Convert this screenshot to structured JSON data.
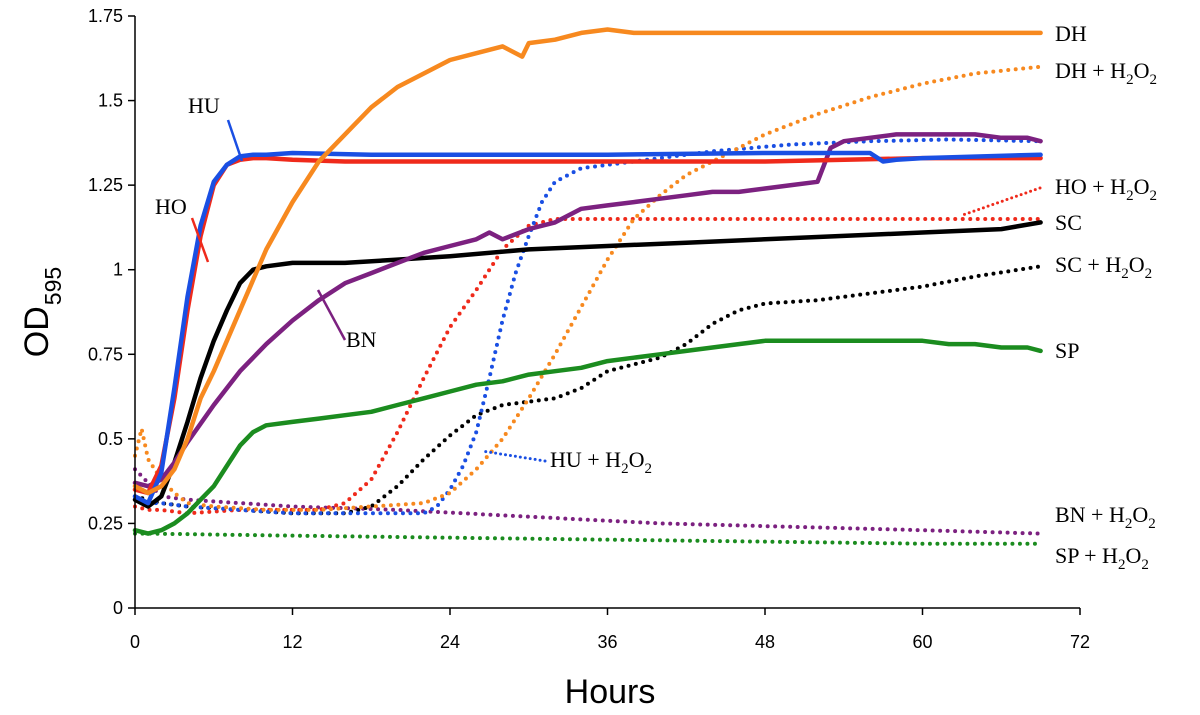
{
  "chart_data": {
    "type": "line",
    "title": "",
    "xlabel": "Hours",
    "ylabel": "OD",
    "ylabel_subscript": "595",
    "xlim": [
      0,
      72
    ],
    "ylim": [
      0,
      1.75
    ],
    "xticks": [
      "0",
      "12",
      "24",
      "36",
      "48",
      "60",
      "72"
    ],
    "yticks": [
      "0",
      "0.25",
      "0.5",
      "0.75",
      "1",
      "1.25",
      "1.5",
      "1.75"
    ],
    "grid": false,
    "legend": "none",
    "series": [
      {
        "name": "DH",
        "color": "#f7891f",
        "style": "solid",
        "x": [
          0,
          1,
          2,
          3,
          4,
          5,
          6,
          8,
          10,
          12,
          14,
          16,
          18,
          20,
          22,
          24,
          26,
          28,
          29.5,
          30,
          32,
          34,
          36,
          38,
          42,
          48,
          54,
          60,
          66,
          69
        ],
        "y": [
          0.36,
          0.34,
          0.36,
          0.41,
          0.5,
          0.62,
          0.7,
          0.88,
          1.06,
          1.2,
          1.32,
          1.4,
          1.48,
          1.54,
          1.58,
          1.62,
          1.64,
          1.66,
          1.63,
          1.67,
          1.68,
          1.7,
          1.71,
          1.7,
          1.7,
          1.7,
          1.7,
          1.7,
          1.7,
          1.7
        ]
      },
      {
        "name": "DH + H2O2",
        "label_parts": [
          [
            "DH + H"
          ],
          [
            "2",
            "sub"
          ],
          [
            "O"
          ],
          [
            "2",
            "sub"
          ]
        ],
        "color": "#f7891f",
        "style": "dotted",
        "x": [
          0,
          0.5,
          1,
          2,
          3,
          4,
          6,
          10,
          14,
          18,
          22,
          24,
          26,
          28,
          30,
          32,
          34,
          36,
          38,
          40,
          42,
          44,
          46,
          48,
          52,
          56,
          60,
          64,
          69
        ],
        "y": [
          0.45,
          0.53,
          0.44,
          0.38,
          0.34,
          0.31,
          0.3,
          0.29,
          0.29,
          0.3,
          0.31,
          0.34,
          0.41,
          0.5,
          0.62,
          0.75,
          0.89,
          1.03,
          1.15,
          1.22,
          1.28,
          1.32,
          1.36,
          1.4,
          1.46,
          1.51,
          1.55,
          1.58,
          1.6
        ]
      },
      {
        "name": "HO",
        "color": "#ef2a1b",
        "style": "solid",
        "x": [
          0,
          1,
          2,
          3,
          4,
          5,
          6,
          7,
          8,
          9,
          10,
          12,
          16,
          24,
          36,
          48,
          60,
          69
        ],
        "y": [
          0.35,
          0.34,
          0.42,
          0.62,
          0.88,
          1.1,
          1.25,
          1.31,
          1.325,
          1.33,
          1.33,
          1.325,
          1.32,
          1.32,
          1.32,
          1.32,
          1.33,
          1.33
        ]
      },
      {
        "name": "HO + H2O2",
        "label_parts": [
          [
            "HO + H"
          ],
          [
            "2",
            "sub"
          ],
          [
            "O"
          ],
          [
            "2",
            "sub"
          ]
        ],
        "color": "#ef2a1b",
        "style": "dotted",
        "x": [
          0,
          1,
          2,
          4,
          8,
          12,
          14,
          16,
          18,
          20,
          22,
          24,
          26,
          28,
          30,
          32,
          34,
          40,
          48,
          56,
          62,
          69
        ],
        "y": [
          0.3,
          0.29,
          0.29,
          0.28,
          0.29,
          0.29,
          0.29,
          0.31,
          0.38,
          0.52,
          0.68,
          0.83,
          0.94,
          1.06,
          1.13,
          1.15,
          1.15,
          1.15,
          1.15,
          1.15,
          1.15,
          1.15
        ]
      },
      {
        "name": "HU",
        "color": "#1a4fe3",
        "style": "solid",
        "x": [
          0,
          1,
          2,
          3,
          4,
          5,
          6,
          7,
          8,
          9,
          10,
          12,
          18,
          24,
          36,
          48,
          56,
          57,
          58,
          60,
          69
        ],
        "y": [
          0.33,
          0.31,
          0.4,
          0.65,
          0.92,
          1.13,
          1.26,
          1.31,
          1.335,
          1.34,
          1.34,
          1.345,
          1.34,
          1.34,
          1.34,
          1.345,
          1.345,
          1.32,
          1.325,
          1.33,
          1.34
        ]
      },
      {
        "name": "HU + H2O2",
        "label_parts": [
          [
            "HU + H"
          ],
          [
            "2",
            "sub"
          ],
          [
            "O"
          ],
          [
            "2",
            "sub"
          ]
        ],
        "color": "#1a4fe3",
        "style": "dotted",
        "x": [
          0,
          1,
          2,
          4,
          8,
          12,
          16,
          20,
          22,
          23,
          24,
          25,
          26,
          27,
          28,
          29,
          30,
          31,
          32,
          34,
          38,
          44,
          50,
          56,
          62,
          69
        ],
        "y": [
          0.33,
          0.31,
          0.31,
          0.3,
          0.29,
          0.28,
          0.28,
          0.28,
          0.28,
          0.3,
          0.35,
          0.42,
          0.52,
          0.68,
          0.85,
          0.99,
          1.1,
          1.2,
          1.26,
          1.3,
          1.32,
          1.35,
          1.37,
          1.38,
          1.385,
          1.38
        ]
      },
      {
        "name": "SC",
        "color": "#000000",
        "style": "solid",
        "x": [
          0,
          1,
          2,
          3,
          4,
          5,
          6,
          7,
          8,
          9,
          10,
          12,
          16,
          20,
          24,
          30,
          36,
          42,
          48,
          54,
          60,
          66,
          69
        ],
        "y": [
          0.32,
          0.3,
          0.33,
          0.43,
          0.55,
          0.68,
          0.79,
          0.88,
          0.96,
          1.0,
          1.01,
          1.02,
          1.02,
          1.03,
          1.04,
          1.06,
          1.07,
          1.08,
          1.09,
          1.1,
          1.11,
          1.12,
          1.14
        ]
      },
      {
        "name": "SC + H2O2",
        "label_parts": [
          [
            "SC + H"
          ],
          [
            "2",
            "sub"
          ],
          [
            "O"
          ],
          [
            "2",
            "sub"
          ]
        ],
        "color": "#000000",
        "style": "dotted",
        "x": [
          0,
          2,
          4,
          8,
          12,
          16,
          18,
          20,
          22,
          24,
          26,
          28,
          32,
          34,
          36,
          38,
          40,
          42,
          44,
          46,
          48,
          52,
          56,
          60,
          64,
          69
        ],
        "y": [
          0.33,
          0.31,
          0.3,
          0.29,
          0.28,
          0.28,
          0.3,
          0.36,
          0.44,
          0.51,
          0.57,
          0.6,
          0.62,
          0.65,
          0.7,
          0.72,
          0.74,
          0.78,
          0.84,
          0.88,
          0.9,
          0.91,
          0.93,
          0.95,
          0.98,
          1.01
        ]
      },
      {
        "name": "BN",
        "color": "#7c2180",
        "style": "solid",
        "x": [
          0,
          1,
          2,
          3,
          4,
          6,
          8,
          10,
          12,
          14,
          16,
          18,
          20,
          22,
          24,
          26,
          27,
          28,
          30,
          32,
          34,
          36,
          38,
          40,
          42,
          44,
          46,
          48,
          50,
          52,
          52.5,
          53,
          54,
          56,
          58,
          60,
          62,
          64,
          66,
          68,
          69
        ],
        "y": [
          0.37,
          0.36,
          0.38,
          0.43,
          0.49,
          0.6,
          0.7,
          0.78,
          0.85,
          0.91,
          0.96,
          0.99,
          1.02,
          1.05,
          1.07,
          1.09,
          1.11,
          1.09,
          1.12,
          1.14,
          1.18,
          1.19,
          1.2,
          1.21,
          1.22,
          1.23,
          1.23,
          1.24,
          1.25,
          1.26,
          1.31,
          1.36,
          1.38,
          1.39,
          1.4,
          1.4,
          1.4,
          1.4,
          1.39,
          1.39,
          1.38
        ]
      },
      {
        "name": "BN + H2O2",
        "label_parts": [
          [
            "BN + H"
          ],
          [
            "2",
            "sub"
          ],
          [
            "O"
          ],
          [
            "2",
            "sub"
          ]
        ],
        "color": "#7c2180",
        "style": "dotted",
        "x": [
          0,
          1,
          2,
          4,
          8,
          12,
          20,
          30,
          40,
          50,
          60,
          69
        ],
        "y": [
          0.41,
          0.37,
          0.33,
          0.32,
          0.31,
          0.3,
          0.29,
          0.27,
          0.25,
          0.24,
          0.23,
          0.22
        ]
      },
      {
        "name": "SP",
        "color": "#1b8c1f",
        "style": "solid",
        "x": [
          0,
          1,
          2,
          3,
          4,
          5,
          6,
          7,
          8,
          9,
          10,
          12,
          14,
          16,
          18,
          20,
          22,
          24,
          26,
          28,
          30,
          32,
          34,
          36,
          38,
          40,
          42,
          44,
          46,
          48,
          50,
          52,
          54,
          56,
          58,
          60,
          62,
          64,
          66,
          68,
          69
        ],
        "y": [
          0.23,
          0.22,
          0.23,
          0.25,
          0.28,
          0.32,
          0.36,
          0.42,
          0.48,
          0.52,
          0.54,
          0.55,
          0.56,
          0.57,
          0.58,
          0.6,
          0.62,
          0.64,
          0.66,
          0.67,
          0.69,
          0.7,
          0.71,
          0.73,
          0.74,
          0.75,
          0.76,
          0.77,
          0.78,
          0.79,
          0.79,
          0.79,
          0.79,
          0.79,
          0.79,
          0.79,
          0.78,
          0.78,
          0.77,
          0.77,
          0.76
        ]
      },
      {
        "name": "SP + H2O2",
        "label_parts": [
          [
            "SP + H"
          ],
          [
            "2",
            "sub"
          ],
          [
            "O"
          ],
          [
            "2",
            "sub"
          ]
        ],
        "color": "#1b8c1f",
        "style": "dotted",
        "x": [
          0,
          1,
          10,
          20,
          30,
          40,
          50,
          60,
          69
        ],
        "y": [
          0.22,
          0.22,
          0.215,
          0.21,
          0.205,
          0.2,
          0.195,
          0.19,
          0.19
        ]
      }
    ],
    "annotations": [
      {
        "text": "HU",
        "parts": [
          [
            "HU"
          ]
        ],
        "series": "HU"
      },
      {
        "text": "HO",
        "parts": [
          [
            "HO"
          ]
        ],
        "series": "HO"
      },
      {
        "text": "BN",
        "parts": [
          [
            "BN"
          ]
        ],
        "series": "BN"
      },
      {
        "text": "HU + H2O2",
        "parts": [
          [
            "HU + H"
          ],
          [
            "2",
            "sub"
          ],
          [
            "O"
          ],
          [
            "2",
            "sub"
          ]
        ],
        "series": "HU + H2O2"
      },
      {
        "text": "DH",
        "parts": [
          [
            "DH"
          ]
        ],
        "series": "DH"
      },
      {
        "text": "DH + H2O2",
        "parts": [
          [
            "DH + H"
          ],
          [
            "2",
            "sub"
          ],
          [
            "O"
          ],
          [
            "2",
            "sub"
          ]
        ],
        "series": "DH + H2O2"
      },
      {
        "text": "HO + H2O2",
        "parts": [
          [
            "HO + H"
          ],
          [
            "2",
            "sub"
          ],
          [
            "O"
          ],
          [
            "2",
            "sub"
          ]
        ],
        "series": "HO + H2O2"
      },
      {
        "text": "SC",
        "parts": [
          [
            "SC"
          ]
        ],
        "series": "SC"
      },
      {
        "text": "SC + H2O2",
        "parts": [
          [
            "SC + H"
          ],
          [
            "2",
            "sub"
          ],
          [
            "O"
          ],
          [
            "2",
            "sub"
          ]
        ],
        "series": "SC + H2O2"
      },
      {
        "text": "SP",
        "parts": [
          [
            "SP"
          ]
        ],
        "series": "SP"
      },
      {
        "text": "BN + H2O2",
        "parts": [
          [
            "BN + H"
          ],
          [
            "2",
            "sub"
          ],
          [
            "O"
          ],
          [
            "2",
            "sub"
          ]
        ],
        "series": "BN + H2O2"
      },
      {
        "text": "SP + H2O2",
        "parts": [
          [
            "SP + H"
          ],
          [
            "2",
            "sub"
          ],
          [
            "O"
          ],
          [
            "2",
            "sub"
          ]
        ],
        "series": "SP + H2O2"
      }
    ]
  }
}
